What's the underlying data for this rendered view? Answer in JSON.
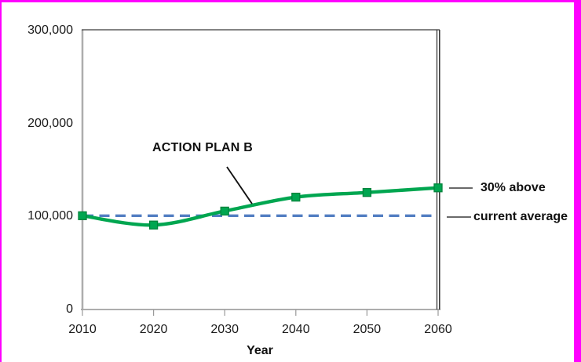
{
  "figure": {
    "background": "#FFFFFF",
    "frame_border_color": "#FF00FF"
  },
  "colors": {
    "series_green": "#00A650",
    "marker_border_green": "#00843C",
    "reference_blue": "#527EC2",
    "axis_gray": "#ADADAD",
    "plot_border_dark": "#3A3A3A",
    "tick_gray": "#9A9A9A",
    "annotation_black": "#111111"
  },
  "chart_data": {
    "type": "line",
    "x": [
      2010,
      2020,
      2030,
      2040,
      2050,
      2060
    ],
    "xtick_labels": [
      "2010",
      "2020",
      "2030",
      "2040",
      "2050",
      "2060"
    ],
    "series": [
      {
        "name": "ACTION PLAN B",
        "values": [
          100000,
          90000,
          105000,
          120000,
          125000,
          130000
        ],
        "color": "#00A650",
        "marker": "square",
        "line_style": "solid",
        "smooth": true
      }
    ],
    "reference_line": {
      "value": 100000,
      "label": "current average",
      "color": "#527EC2",
      "style": "dashed"
    },
    "annotations": {
      "plan_label": "ACTION PLAN B",
      "end_label": "30% above",
      "reference_label": "current average"
    },
    "xlabel": "Year",
    "ylabel": "",
    "ylim": [
      0,
      300000
    ],
    "xlim": [
      2010,
      2060
    ],
    "yticks": [
      0,
      100000,
      200000,
      300000
    ],
    "ytick_labels": [
      "0",
      "100,000",
      "200,000",
      "300,000"
    ],
    "grid": false,
    "legend": "none"
  }
}
